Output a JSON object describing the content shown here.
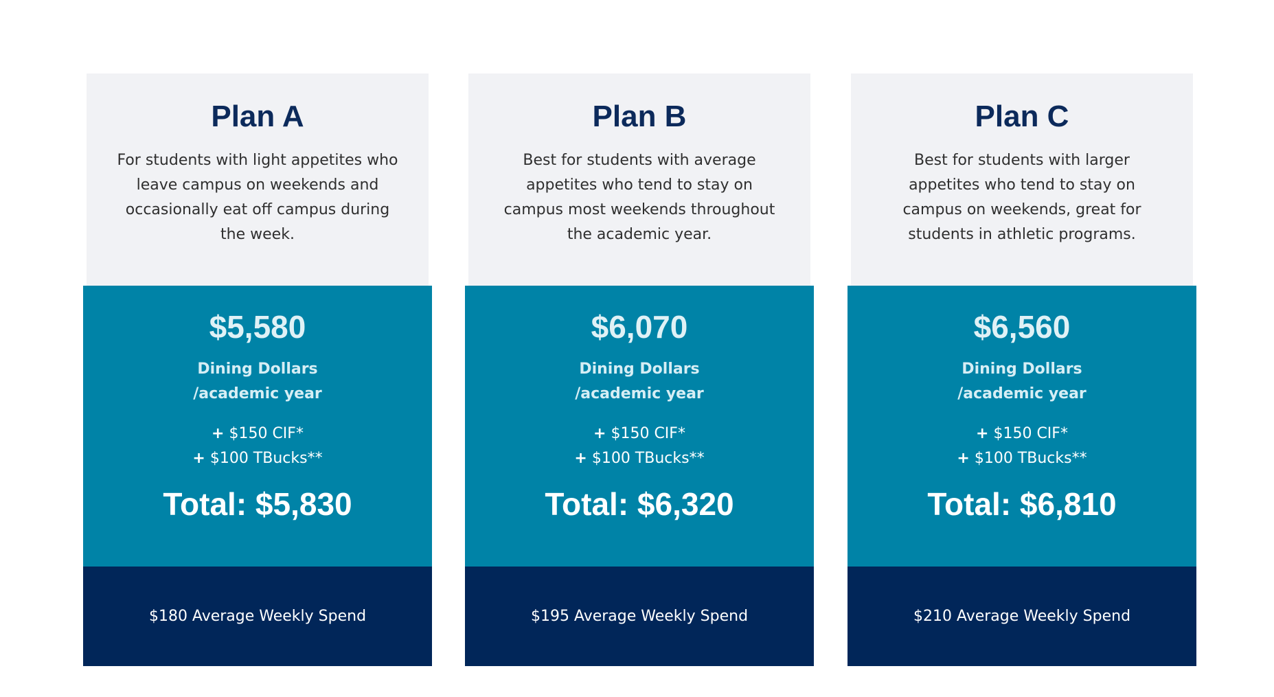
{
  "plans": [
    {
      "name": "Plan A",
      "description": "For students with light appetites who leave campus on weekends and occasionally eat off campus during the week.",
      "amount": "$5,580",
      "unit_line1": "Dining Dollars",
      "unit_line2": "/academic year",
      "extra1": "$150 CIF*",
      "extra2": "$100 TBucks**",
      "total": "Total: $5,830",
      "weekly": "$180 Average Weekly Spend"
    },
    {
      "name": "Plan B",
      "description": "Best for students with average appetites who tend to stay on campus most weekends throughout the academic year.",
      "amount": "$6,070",
      "unit_line1": "Dining Dollars",
      "unit_line2": "/academic year",
      "extra1": "$150 CIF*",
      "extra2": "$100 TBucks**",
      "total": "Total: $6,320",
      "weekly": "$195 Average Weekly Spend"
    },
    {
      "name": "Plan C",
      "description": "Best for students with larger appetites who tend to stay on campus on weekends, great for students in athletic programs.",
      "amount": "$6,560",
      "unit_line1": "Dining Dollars",
      "unit_line2": "/academic year",
      "extra1": "$150 CIF*",
      "extra2": "$100 TBucks**",
      "total": "Total: $6,810",
      "weekly": "$210 Average Weekly Spend"
    }
  ],
  "plus_sign": "+",
  "colors": {
    "card_top_bg": "#f1f2f5",
    "card_mid_bg": "#0083a7",
    "card_bottom_bg": "#012659",
    "title_color": "#0c2a5b"
  }
}
